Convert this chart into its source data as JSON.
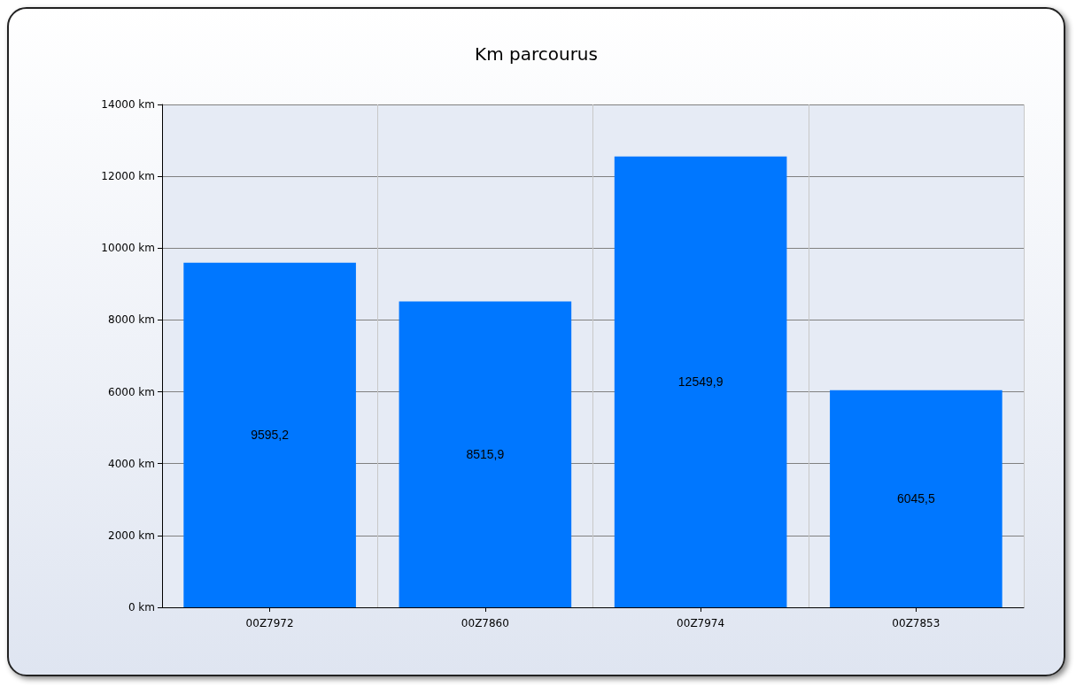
{
  "chart_data": {
    "type": "bar",
    "title": "Km parcourus",
    "categories": [
      "00Z7972",
      "00Z7860",
      "00Z7974",
      "00Z7853"
    ],
    "values": [
      9595.2,
      8515.9,
      12549.9,
      6045.5
    ],
    "value_labels": [
      "9595,2",
      "8515,9",
      "12549,9",
      "6045,5"
    ],
    "color": "#0077ff",
    "ylim": [
      0,
      14000
    ],
    "yticks": [
      {
        "value": 0,
        "label": "0 km"
      },
      {
        "value": 2000,
        "label": "2000 km"
      },
      {
        "value": 4000,
        "label": "4000 km"
      },
      {
        "value": 6000,
        "label": "6000 km"
      },
      {
        "value": 8000,
        "label": "8000 km"
      },
      {
        "value": 10000,
        "label": "10000 km"
      },
      {
        "value": 12000,
        "label": "12000 km"
      },
      {
        "value": 14000,
        "label": "14000 km"
      }
    ],
    "grid": true
  }
}
